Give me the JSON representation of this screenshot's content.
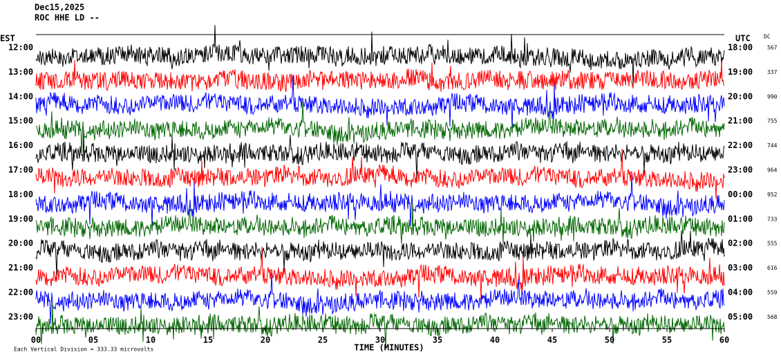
{
  "chart_data": {
    "type": "helicorder",
    "title_lines": [
      "Dec15,2025",
      "ROC HHE LD --"
    ],
    "left_axis_title": "EST",
    "right_axis_title": "UTC",
    "dc_title": "DC",
    "xlabel": "TIME (MINUTES)",
    "footnote": "Each Vertical Division =  333.33 microvolts",
    "xlim": [
      0,
      60
    ],
    "xticks": [
      {
        "value": 0,
        "label": "00"
      },
      {
        "value": 5,
        "label": "05"
      },
      10,
      15,
      20,
      25,
      30,
      35,
      40,
      45,
      50,
      55,
      60
    ],
    "trace_colors": [
      "#000000",
      "#ff0000",
      "#0000ff",
      "#006600"
    ],
    "rows": [
      {
        "est": "12:00",
        "utc": "18:00",
        "dc": 567
      },
      {
        "est": "13:00",
        "utc": "19:00",
        "dc": 337
      },
      {
        "est": "14:00",
        "utc": "20:00",
        "dc": 990
      },
      {
        "est": "15:00",
        "utc": "21:00",
        "dc": 755
      },
      {
        "est": "16:00",
        "utc": "22:00",
        "dc": 744
      },
      {
        "est": "17:00",
        "utc": "23:00",
        "dc": 964
      },
      {
        "est": "18:00",
        "utc": "00:00",
        "dc": 952
      },
      {
        "est": "19:00",
        "utc": "01:00",
        "dc": 733
      },
      {
        "est": "20:00",
        "utc": "02:00",
        "dc": 555
      },
      {
        "est": "21:00",
        "utc": "03:00",
        "dc": 616
      },
      {
        "est": "22:00",
        "utc": "04:00",
        "dc": 559
      },
      {
        "est": "23:00",
        "utc": "05:00",
        "dc": 568
      }
    ]
  }
}
